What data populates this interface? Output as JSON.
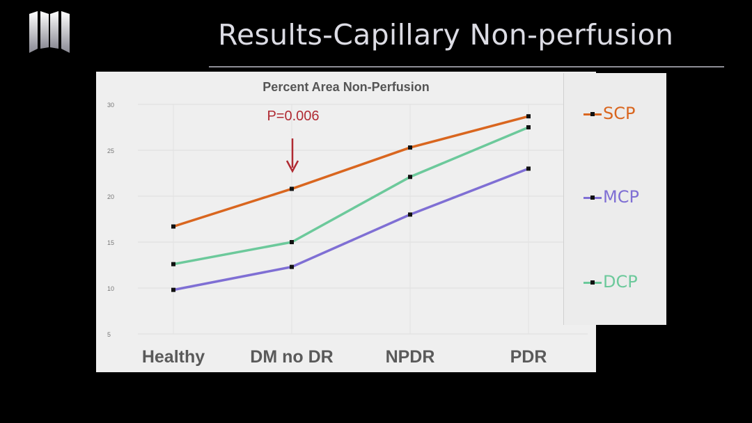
{
  "slide": {
    "title": "Results-Capillary Non-perfusion"
  },
  "colors": {
    "background": "#000000",
    "panel": "#efefef",
    "annotation": "#b02a32"
  },
  "chart_data": {
    "type": "line",
    "title": "Percent Area Non-Perfusion",
    "categories": [
      "Healthy",
      "DM no DR",
      "NPDR",
      "PDR"
    ],
    "y_ticks": [
      5,
      10,
      15,
      20,
      25,
      30
    ],
    "ylim": [
      5,
      30
    ],
    "grid": true,
    "legend_position": "right",
    "series": [
      {
        "name": "SCP",
        "color": "#d9661f",
        "values": [
          16.7,
          20.8,
          25.3,
          28.7
        ]
      },
      {
        "name": "MCP",
        "color": "#7f6fd4",
        "values": [
          9.8,
          12.3,
          18.0,
          23.0
        ]
      },
      {
        "name": "DCP",
        "color": "#6cc99b",
        "values": [
          12.6,
          15.0,
          22.1,
          27.5
        ]
      }
    ],
    "annotation": {
      "text": "P=0.006",
      "category": "DM no DR"
    }
  }
}
